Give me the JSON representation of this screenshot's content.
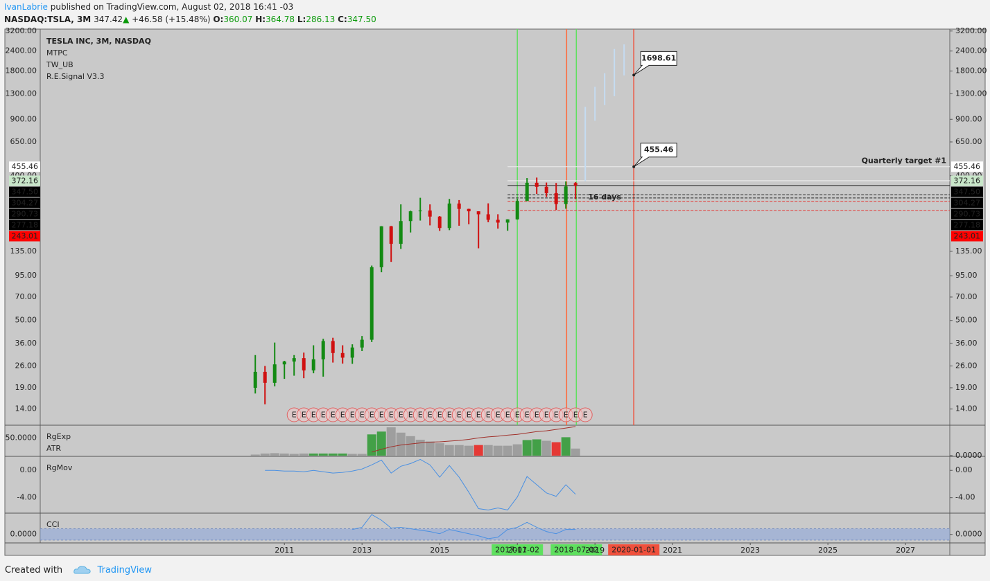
{
  "header": {
    "author": "IvanLabrie",
    "published": "published on TradingView.com, August 02, 2018 16:41 -03",
    "symbol": "NASDAQ:TSLA, 3M",
    "last": "347.42",
    "change": "+46.58 (+15.48%)",
    "o_label": "O:",
    "o": "360.07",
    "h_label": "H:",
    "h": "364.78",
    "l_label": "L:",
    "l": "286.13",
    "c_label": "C:",
    "c": "347.50"
  },
  "footer": {
    "created": "Created with",
    "brand": "TradingView"
  },
  "chart_data": [
    {
      "type": "candlestick",
      "log": true,
      "legend": [
        "TESLA INC, 3M, NASDAQ",
        "MTPC",
        "TW_UB",
        "R.E.Signal V3.3"
      ],
      "xlim": [
        2004.71,
        2028.14
      ],
      "ylim": [
        11.1,
        3290
      ],
      "yticks": [
        {
          "value": 14,
          "label": "14.00"
        },
        {
          "value": 19,
          "label": "19.00"
        },
        {
          "value": 26,
          "label": "26.00"
        },
        {
          "value": 36,
          "label": "36.00"
        },
        {
          "value": 50,
          "label": "50.00"
        },
        {
          "value": 70,
          "label": "70.00"
        },
        {
          "value": 95,
          "label": "95.00"
        },
        {
          "value": 135,
          "label": "135.00"
        },
        {
          "value": 400,
          "label": "400.00"
        },
        {
          "value": 650,
          "label": "650.00"
        },
        {
          "value": 900,
          "label": "900.00"
        },
        {
          "value": 1300,
          "label": "1300.00"
        },
        {
          "value": 1800,
          "label": "1800.00"
        },
        {
          "value": 2400,
          "label": "2400.00"
        },
        {
          "value": 3200,
          "label": "3200.00"
        }
      ],
      "up_color": "#138a13",
      "down_color": "#d01010",
      "x": [
        2010.25,
        2010.5,
        2010.75,
        2011,
        2011.25,
        2011.5,
        2011.75,
        2012,
        2012.25,
        2012.5,
        2012.75,
        2013,
        2013.25,
        2013.5,
        2013.75,
        2014,
        2014.25,
        2014.5,
        2014.75,
        2015,
        2015.25,
        2015.5,
        2015.75,
        2016,
        2016.25,
        2016.5,
        2016.75,
        2017,
        2017.25,
        2017.5,
        2017.75,
        2018,
        2018.25,
        2018.5
      ],
      "open": [
        19,
        23.9,
        20.4,
        26.6,
        27.7,
        29.1,
        24.4,
        28.6,
        37.2,
        31.3,
        29.3,
        33.9,
        37.9,
        107.4,
        193.4,
        150.4,
        208.5,
        240,
        242.7,
        222.4,
        188.8,
        268.3,
        248.4,
        240,
        229.8,
        212.3,
        204,
        213.7,
        278.3,
        361.6,
        341.1,
        311.4,
        266.1,
        360.07
      ],
      "high": [
        30.4,
        26,
        36.4,
        28,
        30.4,
        31.5,
        35,
        38.4,
        39,
        35,
        35.5,
        40,
        110,
        194,
        194.5,
        265,
        242,
        291.4,
        265,
        224,
        286.6,
        282,
        249,
        240,
        269,
        230,
        214,
        287,
        386.99,
        389.6,
        362.7,
        360.5,
        368.5,
        364.78
      ],
      "low": [
        17.5,
        14.98,
        19.4,
        21.6,
        22.6,
        21.8,
        23.4,
        22.3,
        27.3,
        26.9,
        26.8,
        32.2,
        36.7,
        100,
        116,
        139.6,
        177,
        210,
        196,
        181,
        183,
        195,
        199,
        141,
        205,
        187,
        181.5,
        213,
        278,
        308,
        295,
        244.6,
        249,
        286.13
      ],
      "close": [
        23.9,
        20.4,
        26.6,
        27.7,
        29.1,
        24.4,
        28.6,
        37.2,
        31.3,
        29.3,
        33.9,
        37.9,
        107.4,
        193.4,
        150.4,
        208.5,
        240,
        242.7,
        222.4,
        188.8,
        268.3,
        248.4,
        240,
        229.8,
        212.3,
        204,
        213.7,
        278.3,
        361.6,
        341.1,
        311.4,
        266.1,
        342.95,
        347.5
      ],
      "price_badges": [
        {
          "value": 455.46,
          "label": "455.46",
          "bg": "#ffffff",
          "fg": "#111111",
          "line": "#eeeeee"
        },
        {
          "value": 372.16,
          "label": "372.16",
          "bg": "#c8e6c9",
          "fg": "#111111",
          "line": "#f5f5f5"
        },
        {
          "value": 347.5,
          "label": "347.50",
          "bg": "#000000",
          "fg": "#ffffff",
          "line": "#222222"
        },
        {
          "value": 304.27,
          "label": "304.27",
          "bg": "#000000",
          "fg": "#ffffff",
          "line": "#222222"
        },
        {
          "value": 290.73,
          "label": "290.73",
          "bg": "#000000",
          "fg": "#ffffff",
          "line": "#222222"
        },
        {
          "value": 277.18,
          "label": "277.18",
          "bg": "#000000",
          "fg": "#ffffff",
          "line": "#e53935"
        },
        {
          "value": 243.01,
          "label": "243.01",
          "bg": "#ff0000",
          "fg": "#ffffff",
          "line": "#e53935"
        }
      ],
      "target": {
        "text": "Quarterly target #1",
        "value": 455.46
      },
      "note": "16 days",
      "projection": {
        "color": "#c5dcf2",
        "x": [
          2018.75,
          2019,
          2019.25,
          2019.5,
          2019.75
        ],
        "low": [
          370,
          882,
          1103,
          1254,
          1690
        ],
        "high": [
          1077,
          1435,
          1745,
          2470,
          2640
        ]
      },
      "callouts": [
        {
          "x": 2020,
          "value": 1698.61
        },
        {
          "x": 2020,
          "value": 455.46
        }
      ],
      "markers": [
        {
          "x": 2017,
          "label": "2017-01-02",
          "color": "#5ee05e"
        },
        {
          "x": 2018.27,
          "color": "#ff6a3d"
        },
        {
          "x": 2018.52,
          "label": "2018-07-02",
          "color": "#5ee05e"
        },
        {
          "x": 2020,
          "label": "2020-01-01",
          "color": "#f0503c"
        }
      ],
      "earnings": {
        "label": "E",
        "x": [
          2011.25,
          2011.5,
          2011.75,
          2012,
          2012.25,
          2012.5,
          2012.75,
          2013,
          2013.25,
          2013.5,
          2013.75,
          2014,
          2014.25,
          2014.5,
          2014.75,
          2015,
          2015.25,
          2015.5,
          2015.75,
          2016,
          2016.25,
          2016.5,
          2016.75,
          2017,
          2017.25,
          2017.5,
          2017.75,
          2018,
          2018.25,
          2018.5,
          2018.75
        ]
      }
    },
    {
      "type": "bar",
      "labels": [
        "RgExp",
        "ATR"
      ],
      "xlim": [
        2004.71,
        2028.14
      ],
      "ylim": [
        -2,
        86
      ],
      "yticks": [
        {
          "value": 50,
          "label": "50.0000"
        }
      ],
      "yticks_right": [
        {
          "value": 0,
          "label": "0.0000"
        }
      ],
      "x": [
        2010.25,
        2010.5,
        2010.75,
        2011,
        2011.25,
        2011.5,
        2011.75,
        2012,
        2012.25,
        2012.5,
        2012.75,
        2013,
        2013.25,
        2013.5,
        2013.75,
        2014,
        2014.25,
        2014.5,
        2014.75,
        2015,
        2015.25,
        2015.5,
        2015.75,
        2016,
        2016.25,
        2016.5,
        2016.75,
        2017,
        2017.25,
        2017.5,
        2017.75,
        2018,
        2018.25,
        2018.5
      ],
      "values": [
        3,
        6,
        7,
        6,
        5,
        6,
        6,
        6,
        6,
        6,
        5,
        5,
        60,
        68,
        80,
        65,
        55,
        45,
        40,
        35,
        30,
        30,
        28,
        30,
        30,
        28,
        28,
        32,
        44,
        46,
        42,
        38,
        52,
        20
      ],
      "colors": [
        "#9e9e9e",
        "#9e9e9e",
        "#9e9e9e",
        "#9e9e9e",
        "#9e9e9e",
        "#9e9e9e",
        "#43a047",
        "#43a047",
        "#43a047",
        "#43a047",
        "#9e9e9e",
        "#9e9e9e",
        "#43a047",
        "#43a047",
        "#9e9e9e",
        "#9e9e9e",
        "#9e9e9e",
        "#9e9e9e",
        "#9e9e9e",
        "#9e9e9e",
        "#9e9e9e",
        "#9e9e9e",
        "#9e9e9e",
        "#e53935",
        "#9e9e9e",
        "#9e9e9e",
        "#9e9e9e",
        "#9e9e9e",
        "#43a047",
        "#43a047",
        "#9e9e9e",
        "#e53935",
        "#43a047",
        "#9e9e9e"
      ],
      "line_color": "#a0302a",
      "line_values": [
        null,
        null,
        null,
        null,
        null,
        null,
        null,
        null,
        null,
        null,
        null,
        null,
        10,
        18,
        25,
        30,
        33,
        36,
        38,
        39,
        41,
        43,
        46,
        50,
        53,
        55,
        58,
        60,
        64,
        68,
        70,
        74,
        78,
        82
      ]
    },
    {
      "type": "line",
      "labels": [
        "RgMov"
      ],
      "color": "#4a90e2",
      "xlim": [
        2004.71,
        2028.14
      ],
      "ylim": [
        -6.26,
        2.05
      ],
      "yticks": [
        {
          "value": 0,
          "label": "0.00"
        },
        {
          "value": -4,
          "label": "-4.00"
        }
      ],
      "x": [
        2010.25,
        2010.5,
        2010.75,
        2011,
        2011.25,
        2011.5,
        2011.75,
        2012,
        2012.25,
        2012.5,
        2012.75,
        2013,
        2013.25,
        2013.5,
        2013.75,
        2014,
        2014.25,
        2014.5,
        2014.75,
        2015,
        2015.25,
        2015.5,
        2015.75,
        2016,
        2016.25,
        2016.5,
        2016.75,
        2017,
        2017.25,
        2017.5,
        2017.75,
        2018,
        2018.25,
        2018.5
      ],
      "values": [
        null,
        0,
        0,
        -0.1,
        -0.1,
        -0.2,
        0,
        -0.2,
        -0.4,
        -0.3,
        -0.1,
        0.2,
        0.8,
        1.5,
        -0.4,
        0.6,
        1.0,
        1.6,
        0.8,
        -1.0,
        0.7,
        -1.0,
        -3.2,
        -5.6,
        -5.8,
        -5.5,
        -5.8,
        -3.9,
        -0.9,
        -2.1,
        -3.3,
        -3.8,
        -2.1,
        -3.5
      ]
    },
    {
      "type": "line",
      "labels": [
        "CCI"
      ],
      "color": "#4a90e2",
      "band": [
        -100,
        100
      ],
      "band_color": "#8fa8dc",
      "xlim": [
        2004.71,
        2028.14
      ],
      "ylim": [
        -150,
        375
      ],
      "yticks": [
        {
          "value": 0,
          "label": "0.0000"
        }
      ],
      "xticks": [
        2011,
        2013,
        2015,
        2017,
        2019,
        2021,
        2023,
        2025,
        2027
      ],
      "x": [
        2010.25,
        2010.5,
        2010.75,
        2011,
        2011.25,
        2011.5,
        2011.75,
        2012,
        2012.25,
        2012.5,
        2012.75,
        2013,
        2013.25,
        2013.5,
        2013.75,
        2014,
        2014.25,
        2014.5,
        2014.75,
        2015,
        2015.25,
        2015.5,
        2015.75,
        2016,
        2016.25,
        2016.5,
        2016.75,
        2017,
        2017.25,
        2017.5,
        2017.75,
        2018,
        2018.25,
        2018.5
      ],
      "values": [
        null,
        null,
        null,
        null,
        null,
        null,
        null,
        null,
        null,
        null,
        87,
        125,
        350,
        250,
        112,
        125,
        100,
        75,
        50,
        12,
        87,
        50,
        12,
        -25,
        -75,
        -50,
        87,
        125,
        212,
        125,
        50,
        12,
        87,
        87
      ]
    }
  ]
}
